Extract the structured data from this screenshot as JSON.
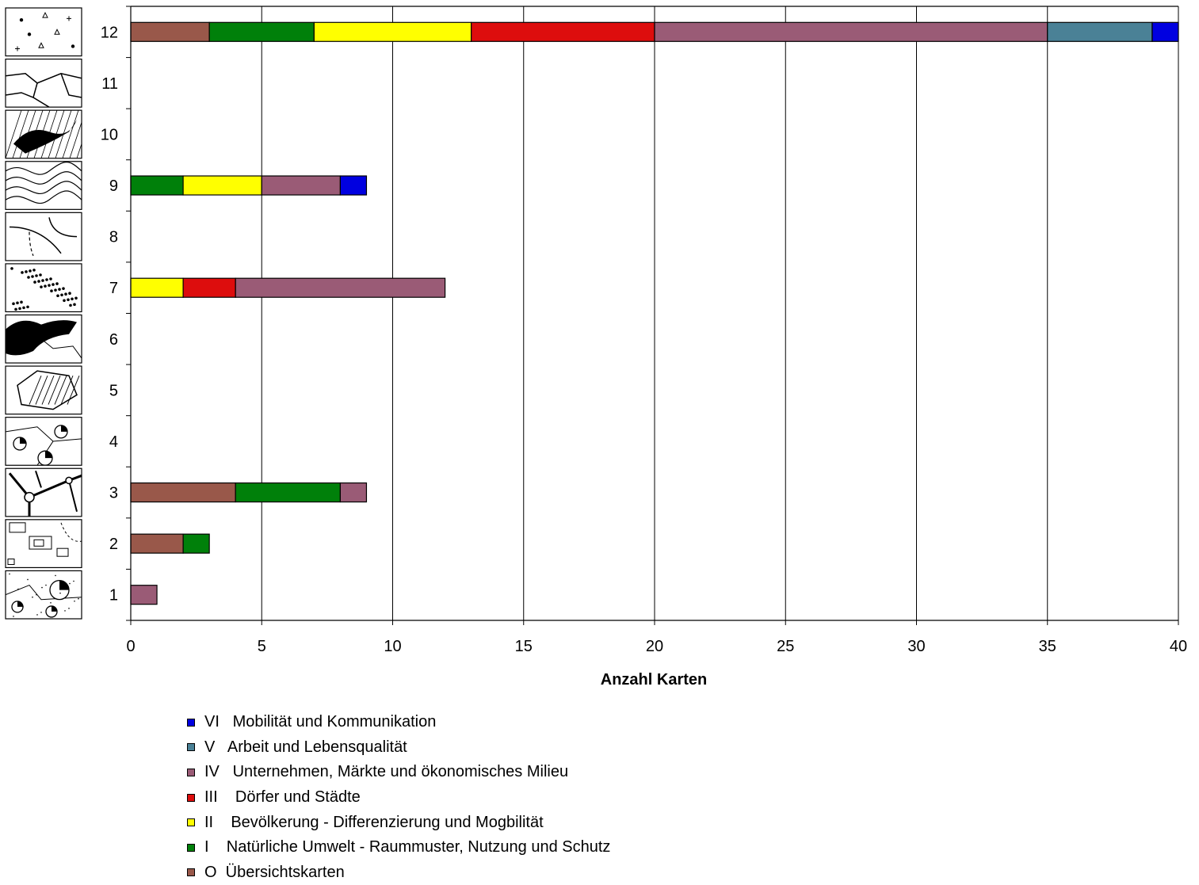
{
  "chart_data": {
    "type": "bar",
    "orientation": "horizontal",
    "stacked": true,
    "xlabel": "Anzahl Karten",
    "xlim": [
      0,
      40
    ],
    "x_ticks": [
      "0",
      "5",
      "10",
      "15",
      "20",
      "25",
      "30",
      "35",
      "40"
    ],
    "categories": [
      "1",
      "2",
      "3",
      "4",
      "5",
      "6",
      "7",
      "8",
      "9",
      "10",
      "11",
      "12"
    ],
    "grid": "vertical",
    "legend_position": "bottom",
    "series": [
      {
        "name": "O  Übersichtskarten",
        "color": "#99584A",
        "values": [
          0,
          2,
          4,
          0,
          0,
          0,
          0,
          0,
          0,
          0,
          0,
          3
        ]
      },
      {
        "name": "I    Natürliche Umwelt - Raummuster, Nutzung und Schutz",
        "color": "#00800A",
        "values": [
          0,
          1,
          4,
          0,
          0,
          0,
          0,
          0,
          2,
          0,
          0,
          4
        ]
      },
      {
        "name": "II    Bevölkerung - Differenzierung und Mogbilität",
        "color": "#FFFF00",
        "values": [
          0,
          0,
          0,
          0,
          0,
          0,
          2,
          0,
          3,
          0,
          0,
          6
        ]
      },
      {
        "name": "III    Dörfer und Städte",
        "color": "#DD0D0D",
        "values": [
          0,
          0,
          0,
          0,
          0,
          0,
          2,
          0,
          0,
          0,
          0,
          7
        ]
      },
      {
        "name": "IV   Unternehmen, Märkte und ökonomisches Milieu",
        "color": "#9A5B76",
        "values": [
          1,
          0,
          1,
          0,
          0,
          0,
          8,
          0,
          3,
          0,
          0,
          15
        ]
      },
      {
        "name": "V   Arbeit und Lebensqualität",
        "color": "#4A8196",
        "values": [
          0,
          0,
          0,
          0,
          0,
          0,
          0,
          0,
          0,
          0,
          0,
          4
        ]
      },
      {
        "name": "VI   Mobilität und Kommunikation",
        "color": "#0000E0",
        "values": [
          0,
          0,
          0,
          0,
          0,
          0,
          0,
          0,
          1,
          0,
          0,
          1
        ]
      }
    ],
    "row_icons": [
      "proportional-pie-map-icon",
      "building-plan-map-icon",
      "network-node-map-icon",
      "pie-chart-map-icon",
      "hatched-area-map-icon",
      "choropleth-blob-map-icon",
      "dot-density-map-icon",
      "flow-arrow-map-icon",
      "isoline-map-icon",
      "hatched-choropleth-map-icon",
      "boundary-line-map-icon",
      "point-symbol-map-icon"
    ]
  }
}
